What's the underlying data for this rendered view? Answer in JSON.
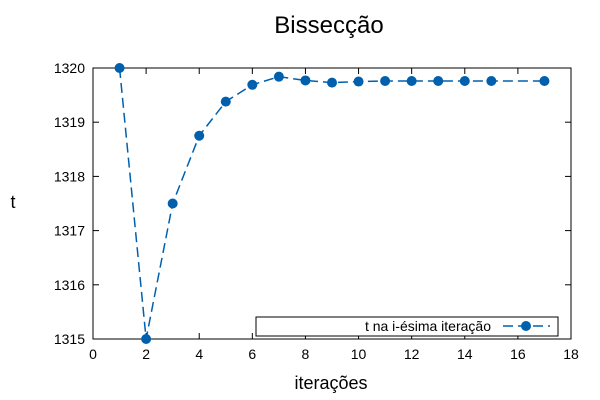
{
  "chart_data": {
    "type": "line",
    "title": "Bissecção",
    "xlabel": "iterações",
    "ylabel": "t",
    "xlim": [
      0,
      18
    ],
    "ylim": [
      1315,
      1320
    ],
    "xticks": [
      "0",
      "2",
      "4",
      "6",
      "8",
      "10",
      "12",
      "14",
      "16",
      "18"
    ],
    "yticks": [
      "1315",
      "1316",
      "1317",
      "1318",
      "1319",
      "1320"
    ],
    "grid": false,
    "legend_position": "bottom-right",
    "series_color": "#0060ad",
    "series": [
      {
        "name": "t na i-ésima iteração",
        "x": [
          1,
          2,
          3,
          4,
          5,
          6,
          7,
          8,
          9,
          10,
          11,
          12,
          13,
          14,
          15,
          17
        ],
        "y": [
          1320,
          1315,
          1317.5,
          1318.75,
          1319.38,
          1319.69,
          1319.84,
          1319.77,
          1319.73,
          1319.75,
          1319.76,
          1319.76,
          1319.76,
          1319.76,
          1319.76,
          1319.76
        ]
      }
    ]
  }
}
